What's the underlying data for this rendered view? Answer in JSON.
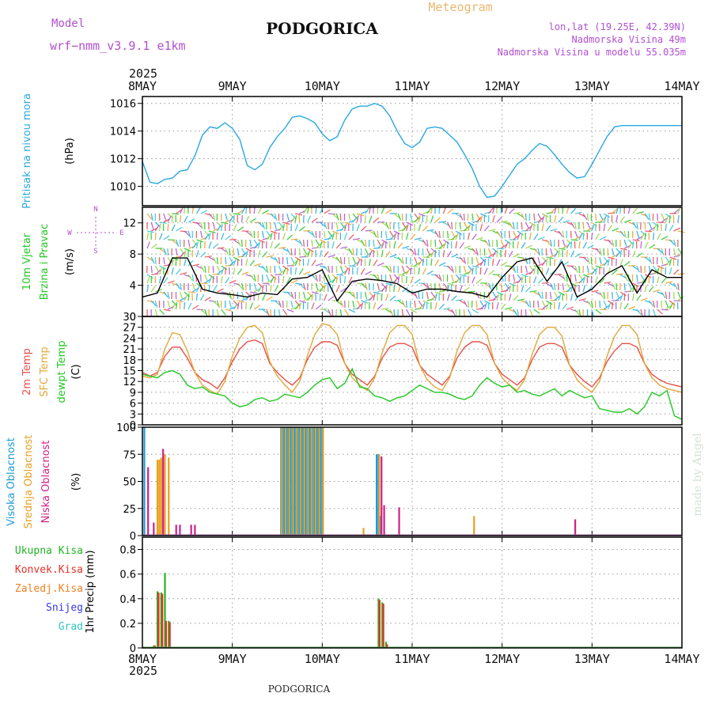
{
  "header": {
    "model_label": "Model",
    "model_name": "wrf−nmm_v3.9.1  e1km",
    "station": "PODGORICA",
    "product": "Meteogram",
    "coords": "lon,lat (19.25E, 42.39N)",
    "elevation": "Nadmorska Visina 49m",
    "model_elevation": "Nadmorska Visina u modelu 55.035m",
    "year": "2025",
    "footer_station": "PODGORICA",
    "watermark": "made by Angel"
  },
  "colors": {
    "pressure": "#2aa8e0",
    "temp": "#e8504a",
    "sfc_temp": "#e0a83a",
    "dewpt": "#22c722",
    "wind_mean": "#000000",
    "high_cloud": "#1e9ad8",
    "mid_cloud": "#e8a020",
    "low_cloud": "#d0208a",
    "total_precip": "#22b522",
    "conv_precip": "#e8302a",
    "frozen_precip": "#f08020",
    "snow": "#3a3ae0",
    "hail": "#30c8c0",
    "model_text": "#b050d0"
  },
  "chart_data": [
    {
      "type": "line",
      "name": "pressure",
      "ylabels": [
        "Pritisak  na  nivou  mora",
        "(hPa)"
      ],
      "x_ticks": [
        "8MAY",
        "9MAY",
        "10MAY",
        "11MAY",
        "12MAY",
        "13MAY",
        "14MAY"
      ],
      "xlim": [
        0,
        144
      ],
      "ylim": [
        1008.6,
        1016.5
      ],
      "y_ticks": [
        1010,
        1012,
        1014,
        1016
      ],
      "grid": true,
      "series": [
        {
          "x": [
            0,
            2,
            4,
            6,
            8,
            10,
            12,
            14,
            16,
            18,
            20,
            22,
            24,
            26,
            28,
            30,
            32,
            34,
            36,
            38,
            40,
            42,
            44,
            46,
            48,
            50,
            52,
            54,
            56,
            58,
            60,
            62,
            64,
            66,
            68,
            70,
            72,
            74,
            76,
            78,
            80,
            82,
            84,
            86,
            88,
            90,
            92,
            94,
            96,
            98,
            100,
            102,
            104,
            106,
            108,
            110,
            112,
            114,
            116,
            118,
            120,
            122,
            124,
            126,
            128,
            130,
            132,
            134,
            136,
            138,
            140,
            142,
            144
          ],
          "y": [
            1011.8,
            1010.3,
            1010.2,
            1010.5,
            1010.6,
            1011.1,
            1011.2,
            1012.2,
            1013.7,
            1014.3,
            1014.2,
            1014.6,
            1014.2,
            1013.4,
            1011.5,
            1011.2,
            1011.6,
            1012.8,
            1013.6,
            1014.2,
            1015.0,
            1015.1,
            1014.9,
            1014.6,
            1013.8,
            1013.3,
            1013.6,
            1014.8,
            1015.6,
            1015.8,
            1015.8,
            1016.0,
            1015.8,
            1015.1,
            1014.0,
            1013.1,
            1012.8,
            1013.2,
            1014.2,
            1014.3,
            1014.2,
            1013.7,
            1013.2,
            1012.3,
            1011.3,
            1010.0,
            1009.2,
            1009.3,
            1010.0,
            1010.8,
            1011.6,
            1012.0,
            1012.6,
            1013.1,
            1012.9,
            1012.3,
            1011.6,
            1011.0,
            1010.6,
            1010.7,
            1011.6,
            1012.6,
            1013.6,
            1014.3,
            1014.4,
            1014.4,
            1014.4,
            1014.4,
            1014.4,
            1014.4,
            1014.4,
            1014.4,
            1014.4
          ]
        }
      ]
    },
    {
      "type": "line",
      "name": "wind",
      "ylabels": [
        "10m  Vjetar",
        "Brzina  i  Pravac",
        "(m/s)"
      ],
      "compass": [
        "N",
        "S",
        "W",
        "E"
      ],
      "xlim": [
        0,
        144
      ],
      "ylim": [
        0,
        14
      ],
      "y_ticks": [
        0,
        4,
        8,
        12
      ],
      "grid": true,
      "series": [
        {
          "name": "mean",
          "x": [
            0,
            4,
            8,
            12,
            16,
            20,
            24,
            28,
            32,
            36,
            40,
            44,
            48,
            52,
            56,
            60,
            64,
            68,
            72,
            76,
            80,
            84,
            88,
            92,
            96,
            100,
            104,
            108,
            112,
            116,
            120,
            124,
            128,
            132,
            136,
            140,
            144
          ],
          "y": [
            2.5,
            3.0,
            7.5,
            7.5,
            3.5,
            3.0,
            2.8,
            2.5,
            3.0,
            2.8,
            4.8,
            5.0,
            6.0,
            2.0,
            4.5,
            4.8,
            4.6,
            4.2,
            3.0,
            3.5,
            3.5,
            3.2,
            3.0,
            2.5,
            5.0,
            7.0,
            7.5,
            4.5,
            7.0,
            2.5,
            3.5,
            5.5,
            6.5,
            3.0,
            6.0,
            5.0,
            5.0
          ]
        }
      ]
    },
    {
      "type": "line",
      "name": "temperature",
      "ylabels": [
        "2m Temp",
        "SFC Temp",
        "dewpt Temp",
        "(C)"
      ],
      "xlim": [
        0,
        144
      ],
      "ylim": [
        0,
        30
      ],
      "y_ticks": [
        0,
        3,
        6,
        9,
        12,
        15,
        18,
        21,
        24,
        27,
        30
      ],
      "grid": true,
      "series": [
        {
          "name": "2m Temp",
          "x": [
            0,
            2,
            4,
            6,
            8,
            10,
            12,
            14,
            16,
            18,
            20,
            22,
            24,
            26,
            28,
            30,
            32,
            34,
            36,
            38,
            40,
            42,
            44,
            46,
            48,
            50,
            52,
            54,
            56,
            58,
            60,
            62,
            64,
            66,
            68,
            70,
            72,
            74,
            76,
            78,
            80,
            82,
            84,
            86,
            88,
            90,
            92,
            94,
            96,
            98,
            100,
            102,
            104,
            106,
            108,
            110,
            112,
            114,
            116,
            118,
            120,
            122,
            124,
            126,
            128,
            130,
            132,
            134,
            136,
            138,
            140,
            142,
            144
          ],
          "y": [
            14.5,
            13.5,
            14.5,
            19.0,
            21.5,
            21.5,
            18.5,
            14.5,
            12.5,
            11.5,
            10.0,
            13.0,
            17.5,
            21.0,
            23.0,
            23.5,
            22.5,
            17.0,
            14.5,
            12.5,
            11.0,
            13.0,
            18.0,
            21.5,
            23.0,
            23.0,
            22.0,
            17.0,
            14.0,
            12.5,
            11.0,
            13.5,
            18.5,
            21.5,
            22.5,
            22.5,
            21.5,
            16.5,
            14.0,
            12.5,
            11.0,
            13.5,
            18.5,
            21.5,
            23.0,
            23.0,
            22.0,
            17.0,
            14.0,
            12.5,
            11.0,
            13.0,
            18.0,
            21.5,
            22.5,
            22.5,
            21.5,
            16.5,
            14.0,
            12.0,
            10.5,
            13.0,
            17.5,
            20.5,
            22.5,
            22.5,
            21.5,
            17.0,
            14.0,
            12.5,
            11.5,
            11.0,
            10.5
          ]
        },
        {
          "name": "SFC Temp",
          "x": [
            0,
            2,
            4,
            6,
            8,
            10,
            12,
            14,
            16,
            18,
            20,
            22,
            24,
            26,
            28,
            30,
            32,
            34,
            36,
            38,
            40,
            42,
            44,
            46,
            48,
            50,
            52,
            54,
            56,
            58,
            60,
            62,
            64,
            66,
            68,
            70,
            72,
            74,
            76,
            78,
            80,
            82,
            84,
            86,
            88,
            90,
            92,
            94,
            96,
            98,
            100,
            102,
            104,
            106,
            108,
            110,
            112,
            114,
            116,
            118,
            120,
            122,
            124,
            126,
            128,
            130,
            132,
            134,
            136,
            138,
            140,
            142,
            144
          ],
          "y": [
            13.5,
            13.0,
            14.0,
            21.0,
            25.5,
            25.0,
            20.5,
            14.5,
            11.0,
            9.5,
            8.5,
            12.0,
            19.0,
            24.0,
            27.0,
            27.5,
            25.5,
            17.5,
            13.5,
            11.0,
            9.0,
            12.0,
            19.0,
            25.0,
            28.0,
            27.5,
            25.0,
            17.0,
            13.0,
            11.0,
            9.5,
            13.0,
            20.0,
            25.5,
            27.5,
            27.5,
            25.0,
            16.5,
            12.5,
            10.5,
            9.5,
            13.0,
            20.5,
            25.5,
            27.5,
            27.5,
            25.0,
            17.0,
            13.0,
            11.0,
            9.5,
            12.5,
            19.5,
            25.0,
            27.0,
            27.0,
            24.5,
            16.5,
            12.5,
            10.5,
            9.0,
            12.0,
            19.0,
            24.5,
            27.5,
            27.5,
            25.0,
            17.0,
            13.0,
            11.0,
            10.0,
            9.5,
            9.0
          ]
        },
        {
          "name": "dewpt Temp",
          "x": [
            0,
            2,
            4,
            6,
            8,
            10,
            12,
            14,
            16,
            18,
            20,
            22,
            24,
            26,
            28,
            30,
            32,
            34,
            36,
            38,
            40,
            42,
            44,
            46,
            48,
            50,
            52,
            54,
            56,
            58,
            60,
            62,
            64,
            66,
            68,
            70,
            72,
            74,
            76,
            78,
            80,
            82,
            84,
            86,
            88,
            90,
            92,
            94,
            96,
            98,
            100,
            102,
            104,
            106,
            108,
            110,
            112,
            114,
            116,
            118,
            120,
            122,
            124,
            126,
            128,
            130,
            132,
            134,
            136,
            138,
            140,
            142,
            144
          ],
          "y": [
            14.0,
            13.5,
            13.0,
            14.5,
            15.0,
            14.0,
            11.0,
            10.0,
            10.5,
            9.0,
            8.5,
            8.0,
            6.0,
            5.0,
            5.5,
            7.0,
            7.5,
            6.5,
            7.0,
            8.5,
            8.0,
            7.5,
            9.0,
            11.0,
            12.5,
            13.0,
            10.0,
            11.5,
            15.5,
            10.5,
            10.0,
            8.0,
            7.5,
            6.5,
            7.5,
            8.0,
            9.5,
            11.0,
            10.0,
            9.0,
            9.0,
            8.5,
            7.5,
            7.0,
            8.0,
            11.0,
            13.0,
            11.5,
            10.5,
            11.0,
            9.0,
            9.5,
            8.5,
            8.0,
            9.0,
            10.0,
            8.0,
            9.5,
            8.5,
            7.5,
            8.0,
            4.5,
            4.0,
            3.5,
            3.5,
            4.5,
            3.0,
            5.0,
            9.0,
            8.0,
            9.5,
            2.5,
            1.5
          ]
        }
      ]
    },
    {
      "type": "bar",
      "name": "cloudiness",
      "ylabels": [
        "Visoka  Oblacnost",
        "Srednja  Oblacnost",
        "Niska  Oblacnost",
        "(%)"
      ],
      "xlim": [
        0,
        144
      ],
      "ylim": [
        0,
        100
      ],
      "y_ticks": [
        0,
        25,
        50,
        75,
        100
      ],
      "grid": true,
      "series": [
        {
          "name": "Visoka Oblacnost",
          "x": [
            0.5,
            37,
            37.5,
            38,
            38.5,
            39,
            39.5,
            40,
            40.5,
            41,
            41.5,
            42,
            42.5,
            43,
            43.5,
            44,
            44.5,
            45,
            45.5,
            46,
            46.5,
            47,
            47.5,
            48,
            62.5,
            63,
            63.5
          ],
          "y": [
            100,
            100,
            100,
            100,
            100,
            100,
            100,
            100,
            100,
            100,
            100,
            100,
            100,
            100,
            100,
            100,
            100,
            100,
            100,
            100,
            100,
            100,
            100,
            100,
            75,
            75,
            18
          ]
        },
        {
          "name": "Srednja Oblacnost",
          "x": [
            4,
            4.5,
            5,
            6,
            7,
            37.2,
            38.2,
            39.2,
            40.2,
            41.2,
            42.2,
            43.2,
            44.2,
            45.2,
            46.2,
            47.2,
            48.2,
            59,
            63.2,
            88.5
          ],
          "y": [
            70,
            70,
            72,
            75,
            72,
            100,
            100,
            100,
            100,
            100,
            100,
            100,
            100,
            100,
            100,
            100,
            100,
            7,
            75,
            18
          ]
        },
        {
          "name": "Niska Oblacnost",
          "x": [
            1.5,
            3,
            5.5,
            9,
            10,
            13,
            14,
            63.8,
            64.5,
            68.5,
            115.5
          ],
          "y": [
            63,
            12,
            80,
            10,
            10,
            10,
            10,
            73,
            28,
            26,
            15
          ]
        }
      ]
    },
    {
      "type": "bar",
      "name": "precipitation",
      "ylabels": [
        "Ukupna  Kisa",
        "Konvek.Kisa",
        "Zaledj.Kisa",
        "Snijeg",
        "Grad",
        "1hr  Precip  (mm)"
      ],
      "legend_order": [
        "Ukupna  Kisa",
        "Konvek.Kisa",
        "Zaledj.Kisa",
        "Snijeg",
        "Grad"
      ],
      "xlim": [
        0,
        144
      ],
      "ylim": [
        0,
        0.9
      ],
      "y_ticks": [
        0,
        0.2,
        0.4,
        0.6,
        0.8
      ],
      "grid": true,
      "series": [
        {
          "name": "Ukupna Kisa",
          "x": [
            3,
            4,
            5,
            6,
            7,
            63,
            64,
            65
          ],
          "y": [
            0.02,
            0.46,
            0.45,
            0.61,
            0.22,
            0.4,
            0.37,
            0.05
          ]
        },
        {
          "name": "Konvek.Kisa",
          "x": [
            3.3,
            4.3,
            5.3,
            6.3,
            7.3,
            63.3,
            64.3,
            65.3
          ],
          "y": [
            0.02,
            0.45,
            0.44,
            0.22,
            0.21,
            0.39,
            0.36,
            0.03
          ]
        },
        {
          "name": "Zaledj.Kisa",
          "x": [
            88.5
          ],
          "y": [
            0.01
          ]
        }
      ]
    }
  ]
}
